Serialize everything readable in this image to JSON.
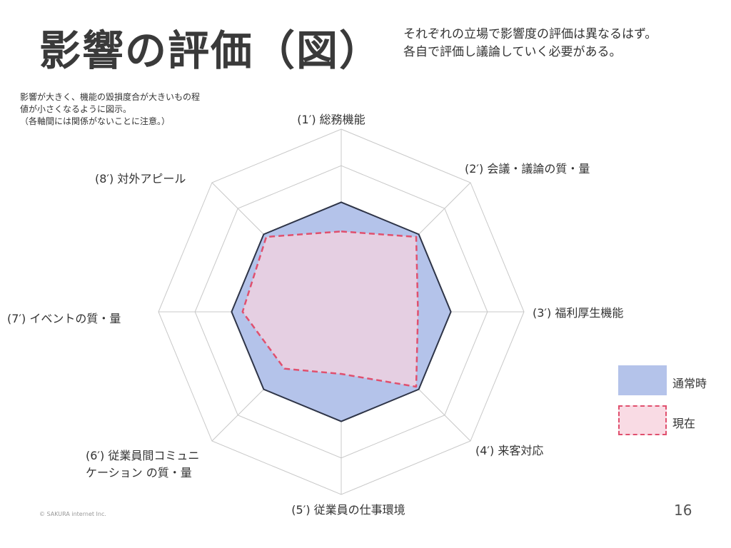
{
  "header": {
    "title": "影響の評価（図）",
    "description_lines": [
      "それぞれの立場で影響度の評価は異なるはず。",
      "各自で評価し議論していく必要がある。"
    ]
  },
  "note_lines": [
    "影響が大きく、機能の毀損度合が大きいもの程",
    "値が小さくなるように図示。",
    "（各軸間には関係がないことに注意。）"
  ],
  "chart_data": {
    "type": "radar",
    "axes": [
      [
        "(1′) 総務機能"
      ],
      [
        "(2′) 会議・議論の質・量"
      ],
      [
        "(3′) 福利厚生機能"
      ],
      [
        "(4′) 来客対応"
      ],
      [
        "(5′) 従業員の仕事環境"
      ],
      [
        "(6′) 従業員間コミュニ",
        "ケーション の質・量"
      ],
      [
        "(7′) イベントの質・量"
      ],
      [
        "(8′) 対外アピール"
      ]
    ],
    "range": [
      0,
      5
    ],
    "rings": 5,
    "series": [
      {
        "name": "通常時",
        "values": [
          3,
          3,
          3,
          3,
          3,
          3,
          3,
          3
        ],
        "fill": "#b4c3ea",
        "stroke": "#2e3447",
        "style": "solid"
      },
      {
        "name": "現在",
        "values": [
          2.2,
          2.9,
          2.1,
          2.9,
          1.7,
          2.2,
          2.7,
          2.9
        ],
        "fill": "#f5d3df",
        "stroke": "#e0506e",
        "style": "dashed"
      }
    ],
    "legend_position": "right"
  },
  "footer": {
    "page_number": "16",
    "copyright": "© SAKURA internet Inc."
  },
  "colors": {
    "grid": "#c8c8c8",
    "text": "#333333"
  }
}
